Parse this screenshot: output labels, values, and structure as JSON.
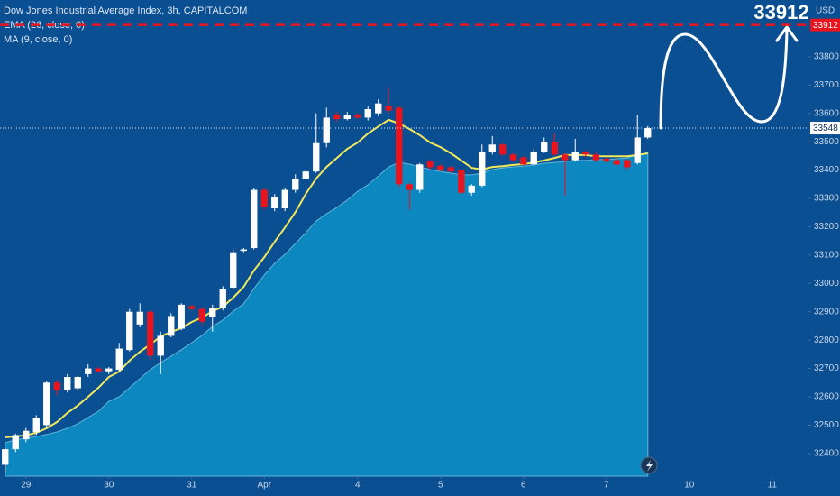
{
  "chart_data": {
    "type": "candlestick",
    "title": "Dow Jones Industrial Average Index, 3h, CAPITALCOM",
    "currency": "USD",
    "open": [
      32360,
      32415,
      32450,
      32475,
      32500,
      32650,
      32625,
      32630,
      32680,
      32700,
      32690,
      32695,
      32765,
      32855,
      32900,
      32745,
      32815,
      32840,
      32920,
      32910,
      32880,
      32915,
      32985,
      33115,
      33125,
      33330,
      33265,
      33265,
      33330,
      33370,
      33395,
      33495,
      33595,
      33580,
      33595,
      33585,
      33600,
      33625,
      33620,
      33350,
      33330,
      33430,
      33415,
      33410,
      33400,
      33320,
      33345,
      33465,
      33490,
      33455,
      33445,
      33420,
      33465,
      33500,
      33455,
      33435,
      33465,
      33455,
      33440,
      33435,
      33435,
      33425,
      33515
    ],
    "high": [
      32420,
      32470,
      32490,
      32535,
      32655,
      32660,
      32680,
      32675,
      32715,
      32705,
      32705,
      32790,
      32910,
      32930,
      32905,
      32830,
      32895,
      32930,
      32925,
      32915,
      32925,
      32990,
      33120,
      33125,
      33335,
      33335,
      33315,
      33335,
      33385,
      33400,
      33600,
      33620,
      33605,
      33605,
      33600,
      33625,
      33650,
      33690,
      33625,
      33355,
      33425,
      33435,
      33420,
      33415,
      33405,
      33350,
      33490,
      33520,
      33495,
      33460,
      33450,
      33475,
      33515,
      33530,
      33460,
      33510,
      33470,
      33460,
      33445,
      33440,
      33440,
      33595,
      33555
    ],
    "low": [
      32330,
      32405,
      32440,
      32465,
      32490,
      32605,
      32615,
      32620,
      32670,
      32685,
      32680,
      32690,
      32760,
      32845,
      32730,
      32680,
      32810,
      32835,
      32905,
      32855,
      32830,
      32905,
      32980,
      33110,
      33120,
      33260,
      33255,
      33255,
      33320,
      33365,
      33390,
      33480,
      33570,
      33575,
      33580,
      33575,
      33590,
      33600,
      33340,
      33260,
      33320,
      33400,
      33395,
      33390,
      33315,
      33310,
      33340,
      33455,
      33450,
      33430,
      33415,
      33415,
      33460,
      33450,
      33310,
      33430,
      33445,
      33430,
      33425,
      33415,
      33400,
      33420,
      33510
    ],
    "close": [
      32415,
      32465,
      32480,
      32525,
      32650,
      32625,
      32670,
      32670,
      32700,
      32690,
      32700,
      32770,
      32900,
      32900,
      32745,
      32815,
      32885,
      32925,
      32910,
      32865,
      32915,
      32980,
      33110,
      33120,
      33330,
      33270,
      33305,
      33330,
      33370,
      33395,
      33495,
      33585,
      33580,
      33595,
      33585,
      33615,
      33635,
      33610,
      33350,
      33330,
      33420,
      33410,
      33400,
      33395,
      33320,
      33345,
      33465,
      33490,
      33455,
      33435,
      33420,
      33465,
      33500,
      33455,
      33435,
      33465,
      33455,
      33435,
      33430,
      33420,
      33410,
      33515,
      33548
    ],
    "up_color": "#ffffff",
    "down_color": "#e8151e",
    "indicators": [
      {
        "name": "EMA (26, close, 0)",
        "color": "#0c87c0",
        "style": "area",
        "values": [
          32438,
          32448,
          32454,
          32460,
          32467,
          32476,
          32489,
          32505,
          32527,
          32549,
          32584,
          32600,
          32632,
          32664,
          32696,
          32721,
          32743,
          32766,
          32791,
          32817,
          32848,
          32871,
          32902,
          32928,
          32982,
          33030,
          33071,
          33103,
          33141,
          33179,
          33220,
          33246,
          33268,
          33294,
          33325,
          33348,
          33379,
          33411,
          33427,
          33421,
          33411,
          33402,
          33395,
          33389,
          33383,
          33383,
          33389,
          33402,
          33408,
          33411,
          33414,
          33418,
          33424,
          33427,
          33430,
          33434,
          33434,
          33437,
          33437,
          33440,
          33443,
          33453,
          33462
        ]
      },
      {
        "name": "MA (9, close, 0)",
        "color": "#f2e85a",
        "style": "line",
        "values": [
          32457,
          32460,
          32464,
          32473,
          32489,
          32511,
          32543,
          32569,
          32600,
          32632,
          32670,
          32689,
          32728,
          32759,
          32785,
          32813,
          32829,
          32842,
          32864,
          32880,
          32902,
          32918,
          32950,
          32988,
          33046,
          33093,
          33147,
          33198,
          33252,
          33316,
          33370,
          33411,
          33443,
          33475,
          33497,
          33529,
          33554,
          33577,
          33564,
          33545,
          33523,
          33497,
          33481,
          33459,
          33434,
          33408,
          33402,
          33411,
          33414,
          33418,
          33421,
          33427,
          33434,
          33443,
          33453,
          33453,
          33453,
          33449,
          33449,
          33449,
          33449,
          33453,
          33459
        ]
      }
    ],
    "target": 33912,
    "target_color": "#e8151e",
    "ylim": [
      32320,
      34000
    ],
    "yticks": [
      32400,
      32500,
      32600,
      32700,
      32800,
      32900,
      33000,
      33100,
      33200,
      33300,
      33400,
      33500,
      33600,
      33700,
      33800
    ],
    "xlim": [
      -0.5,
      77.5
    ],
    "xticks": [
      {
        "value": 2,
        "label": "29"
      },
      {
        "value": 10,
        "label": "30"
      },
      {
        "value": 18,
        "label": "31"
      },
      {
        "value": 25,
        "label": "Apr"
      },
      {
        "value": 34,
        "label": "4"
      },
      {
        "value": 42,
        "label": "5"
      },
      {
        "value": 50,
        "label": "6"
      },
      {
        "value": 58,
        "label": "7"
      },
      {
        "value": 66,
        "label": "10"
      },
      {
        "value": 74,
        "label": "11"
      }
    ]
  }
}
